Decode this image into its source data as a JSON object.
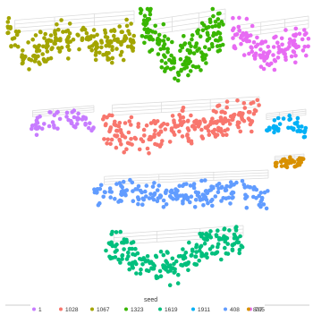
{
  "chart_data": {
    "type": "scatter",
    "title": "",
    "xlabel": "",
    "ylabel": "",
    "grid": true,
    "legend": {
      "title": "seed",
      "placement": "bottom",
      "items": [
        {
          "label": "1",
          "color": "#c77cff"
        },
        {
          "label": "1028",
          "color": "#f8766d"
        },
        {
          "label": "1067",
          "color": "#a3a500"
        },
        {
          "label": "1323",
          "color": "#39b600"
        },
        {
          "label": "1619",
          "color": "#00bf7d"
        },
        {
          "label": "1911",
          "color": "#00b0f6"
        },
        {
          "label": "408",
          "color": "#619cff"
        },
        {
          "label": "705",
          "color": "#e76bf3"
        },
        {
          "label": "807",
          "color": "#d89000"
        }
      ]
    },
    "series": [
      {
        "name": "1067",
        "color": "#a3a500",
        "panel": {
          "x0": 8,
          "x1": 150,
          "y0": 12,
          "y1": 100
        },
        "trend": [
          [
            0,
            0.25
          ],
          [
            0.15,
            0.6
          ],
          [
            0.3,
            0.45
          ],
          [
            0.45,
            0.35
          ],
          [
            0.6,
            0.3
          ],
          [
            0.75,
            0.5
          ],
          [
            1,
            0.3
          ]
        ]
      },
      {
        "name": "1323",
        "color": "#39b600",
        "panel": {
          "x0": 157,
          "x1": 252,
          "y0": 10,
          "y1": 120
        },
        "trend": [
          [
            0,
            0.15
          ],
          [
            0.2,
            0.3
          ],
          [
            0.4,
            0.6
          ],
          [
            0.55,
            0.45
          ],
          [
            0.7,
            0.4
          ],
          [
            0.85,
            0.25
          ],
          [
            1,
            0.2
          ]
        ]
      },
      {
        "name": "705",
        "color": "#e76bf3",
        "panel": {
          "x0": 260,
          "x1": 345,
          "y0": 18,
          "y1": 105
        },
        "trend": [
          [
            0,
            0.25
          ],
          [
            0.25,
            0.3
          ],
          [
            0.45,
            0.55
          ],
          [
            0.65,
            0.45
          ],
          [
            0.8,
            0.35
          ],
          [
            1,
            0.3
          ]
        ]
      },
      {
        "name": "1",
        "color": "#c77cff",
        "panel": {
          "x0": 32,
          "x1": 105,
          "y0": 118,
          "y1": 165
        },
        "trend": [
          [
            0,
            0.5
          ],
          [
            0.25,
            0.45
          ],
          [
            0.5,
            0.3
          ],
          [
            0.75,
            0.35
          ],
          [
            1,
            0.5
          ]
        ]
      },
      {
        "name": "1028",
        "color": "#f8766d",
        "panel": {
          "x0": 115,
          "x1": 290,
          "y0": 108,
          "y1": 185
        },
        "trend": [
          [
            0,
            0.45
          ],
          [
            0.15,
            0.55
          ],
          [
            0.3,
            0.6
          ],
          [
            0.45,
            0.4
          ],
          [
            0.6,
            0.45
          ],
          [
            0.75,
            0.35
          ],
          [
            1,
            0.25
          ]
        ]
      },
      {
        "name": "1911",
        "color": "#00b0f6",
        "panel": {
          "x0": 295,
          "x1": 342,
          "y0": 122,
          "y1": 165
        },
        "trend": [
          [
            0,
            0.6
          ],
          [
            0.3,
            0.4
          ],
          [
            0.6,
            0.3
          ],
          [
            1,
            0.6
          ]
        ]
      },
      {
        "name": "807",
        "color": "#d89000",
        "panel": {
          "x0": 305,
          "x1": 340,
          "y0": 172,
          "y1": 195
        },
        "trend": [
          [
            0,
            0.5
          ],
          [
            0.5,
            0.4
          ],
          [
            1,
            0.3
          ]
        ]
      },
      {
        "name": "408",
        "color": "#619cff",
        "panel": {
          "x0": 105,
          "x1": 300,
          "y0": 190,
          "y1": 250
        },
        "trend": [
          [
            0,
            0.45
          ],
          [
            0.2,
            0.35
          ],
          [
            0.4,
            0.5
          ],
          [
            0.6,
            0.45
          ],
          [
            0.8,
            0.4
          ],
          [
            1,
            0.55
          ]
        ]
      },
      {
        "name": "1619",
        "color": "#00bf7d",
        "panel": {
          "x0": 118,
          "x1": 272,
          "y0": 252,
          "y1": 332
        },
        "trend": [
          [
            0,
            0.25
          ],
          [
            0.2,
            0.4
          ],
          [
            0.35,
            0.55
          ],
          [
            0.5,
            0.6
          ],
          [
            0.65,
            0.4
          ],
          [
            0.8,
            0.25
          ],
          [
            1,
            0.15
          ]
        ]
      }
    ]
  }
}
